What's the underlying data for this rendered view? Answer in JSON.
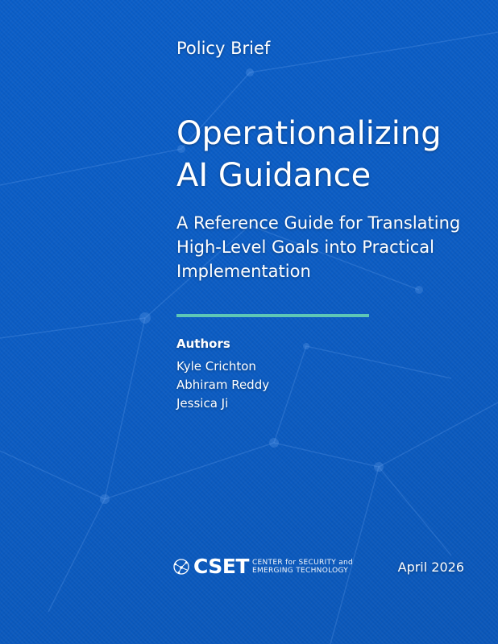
{
  "kicker": "Policy Brief",
  "title_lines": [
    "Operationalizing",
    "AI Guidance"
  ],
  "subtitle_lines": [
    "A Reference Guide for Translating",
    "High-Level Goals into Practical",
    "Implementation"
  ],
  "authors_heading": "Authors",
  "authors": [
    "Kyle Crichton",
    "Abhiram Reddy",
    "Jessica Ji"
  ],
  "logo": {
    "name": "CSET",
    "full_line1": "CENTER for SECURITY and",
    "full_line2": "EMERGING TECHNOLOGY",
    "icon": "globe-network-icon"
  },
  "date": "April 2026",
  "colors": {
    "background": "#0b5cc3",
    "accent_rule": "#5ec7b6",
    "text": "#ffffff"
  }
}
